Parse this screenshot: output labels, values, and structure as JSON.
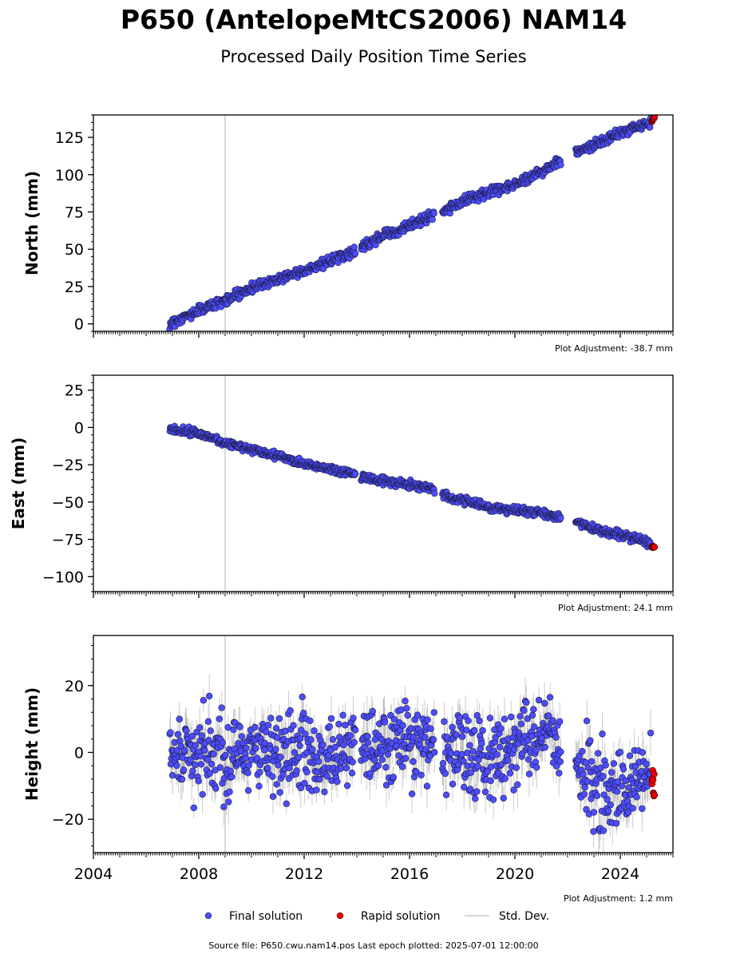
{
  "title": "P650 (AntelopeMtCS2006) NAM14",
  "subtitle": "Processed Daily Position Time Series",
  "footer": "Source file: P650.cwu.nam14.pos  Last epoch plotted: 2025-07-01 12:00:00",
  "legend": [
    {
      "label": "Final solution",
      "color": "#4d4dff",
      "kind": "marker"
    },
    {
      "label": "Rapid solution",
      "color": "#ee0000",
      "kind": "marker"
    },
    {
      "label": "Std. Dev.",
      "color": "#c8c8c8",
      "kind": "line"
    }
  ],
  "chart_data": [
    {
      "type": "scatter",
      "ylabel": "North (mm)",
      "adjustment": "Plot Adjustment: -38.7 mm",
      "xlim": [
        2004.0,
        2026.0
      ],
      "ylim": [
        -5,
        140
      ],
      "yticks": [
        0,
        25,
        50,
        75,
        100,
        125
      ],
      "ytick_labels": [
        "0",
        "25",
        "50",
        "75",
        "100",
        "125"
      ],
      "vline_x": 2009.0,
      "final_series": {
        "name": "Final solution",
        "x": [
          2006.9,
          2008.0,
          2009.0,
          2010.0,
          2011.0,
          2012.0,
          2013.0,
          2013.95,
          2014.15,
          2015.0,
          2016.0,
          2016.9,
          2017.25,
          2018.0,
          2019.0,
          2020.0,
          2021.0,
          2021.7,
          2022.3,
          2023.0,
          2024.0,
          2025.0,
          2025.3
        ],
        "y": [
          0,
          9,
          16,
          24,
          30,
          36,
          42,
          49,
          51,
          59,
          66,
          73,
          75,
          82,
          88,
          93,
          102,
          109,
          115,
          120,
          128,
          134,
          137
        ]
      },
      "rapid_series": {
        "name": "Rapid solution",
        "x": [
          2025.2,
          2025.25,
          2025.3
        ],
        "y": [
          136,
          137,
          138
        ]
      },
      "noise_sd": 1.6,
      "noise_max": 3.5,
      "sigma": 0.8,
      "gaps": [
        [
          2013.95,
          2014.15
        ],
        [
          2016.95,
          2017.25
        ],
        [
          2021.75,
          2022.3
        ]
      ]
    },
    {
      "type": "scatter",
      "ylabel": "East (mm)",
      "adjustment": "Plot Adjustment: 24.1 mm",
      "xlim": [
        2004.0,
        2026.0
      ],
      "ylim": [
        -110,
        35
      ],
      "yticks": [
        -100,
        -75,
        -50,
        -25,
        0,
        25
      ],
      "ytick_labels": [
        "−100",
        "−75",
        "−50",
        "−25",
        "0",
        "25"
      ],
      "vline_x": 2009.0,
      "final_series": {
        "name": "Final solution",
        "x": [
          2006.9,
          2008.0,
          2009.0,
          2010.0,
          2011.0,
          2012.0,
          2013.0,
          2013.95,
          2014.15,
          2015.0,
          2016.0,
          2016.9,
          2017.25,
          2018.0,
          2019.0,
          2020.0,
          2021.0,
          2021.7,
          2022.3,
          2023.0,
          2024.0,
          2025.0,
          2025.3
        ],
        "y": [
          0,
          -4,
          -10,
          -15,
          -19,
          -24,
          -28,
          -31,
          -33,
          -36,
          -38,
          -41,
          -45,
          -49,
          -53,
          -56,
          -57,
          -60,
          -63,
          -68,
          -72,
          -77,
          -80
        ]
      },
      "rapid_series": {
        "name": "Rapid solution",
        "x": [
          2025.2,
          2025.25,
          2025.3
        ],
        "y": [
          -80,
          -80,
          -81
        ]
      },
      "noise_sd": 1.3,
      "noise_max": 3.0,
      "sigma": 0.6,
      "gaps": [
        [
          2013.95,
          2014.15
        ],
        [
          2016.95,
          2017.25
        ],
        [
          2021.75,
          2022.3
        ]
      ]
    },
    {
      "type": "scatter",
      "ylabel": "Height (mm)",
      "adjustment": "Plot Adjustment: 1.2 mm",
      "xlim": [
        2004.0,
        2026.0
      ],
      "ylim": [
        -30,
        35
      ],
      "yticks": [
        -20,
        0,
        20
      ],
      "ytick_labels": [
        "−20",
        "0",
        "20"
      ],
      "xticks": [
        2004,
        2008,
        2012,
        2016,
        2020,
        2024
      ],
      "xtick_labels": [
        "2004",
        "2008",
        "2012",
        "2016",
        "2020",
        "2024"
      ],
      "vline_x": 2009.0,
      "final_series": {
        "name": "Final solution",
        "x": [
          2006.9,
          2008.0,
          2009.0,
          2010.0,
          2011.0,
          2012.0,
          2013.0,
          2013.95,
          2014.15,
          2015.0,
          2016.0,
          2016.9,
          2017.25,
          2018.0,
          2019.0,
          2020.0,
          2021.0,
          2021.7,
          2022.3,
          2023.0,
          2024.0,
          2025.0,
          2025.3
        ],
        "y": [
          1,
          0,
          -1,
          1,
          0,
          1,
          0,
          2,
          3,
          2,
          4,
          3,
          -2,
          0,
          -2,
          2,
          5,
          4,
          -5,
          -10,
          -12,
          -7,
          -9
        ]
      },
      "rapid_series": {
        "name": "Rapid solution",
        "x": [
          2025.2,
          2025.25,
          2025.3
        ],
        "y": [
          -6,
          -10,
          -12
        ]
      },
      "noise_sd": 6.0,
      "noise_max": 20,
      "sigma": 5.0,
      "gaps": [
        [
          2013.95,
          2014.15
        ],
        [
          2016.95,
          2017.25
        ],
        [
          2021.75,
          2022.3
        ]
      ]
    }
  ]
}
